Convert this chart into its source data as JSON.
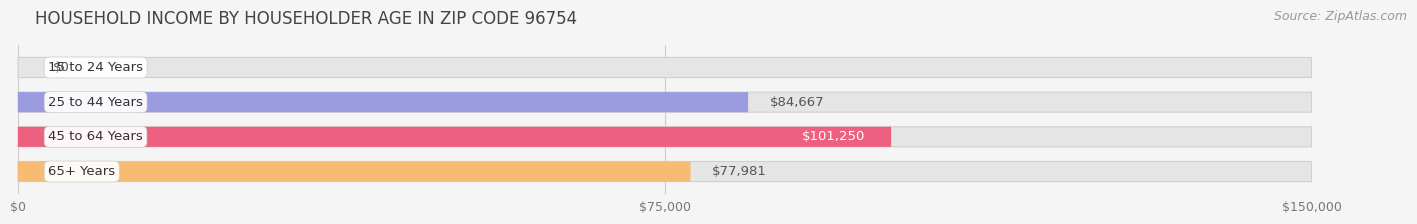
{
  "title": "HOUSEHOLD INCOME BY HOUSEHOLDER AGE IN ZIP CODE 96754",
  "source": "Source: ZipAtlas.com",
  "categories": [
    "15 to 24 Years",
    "25 to 44 Years",
    "45 to 64 Years",
    "65+ Years"
  ],
  "values": [
    0,
    84667,
    101250,
    77981
  ],
  "bar_colors": [
    "#7DD8D0",
    "#9B9BE0",
    "#EE6080",
    "#F7BC72"
  ],
  "value_labels": [
    "$0",
    "$84,667",
    "$101,250",
    "$77,981"
  ],
  "value_inside": [
    false,
    false,
    true,
    false
  ],
  "xlim": [
    0,
    150000
  ],
  "xticks": [
    0,
    75000,
    150000
  ],
  "xticklabels": [
    "$0",
    "$75,000",
    "$150,000"
  ],
  "background_color": "#f5f5f5",
  "bar_bg_color": "#e5e5e5",
  "title_fontsize": 12,
  "source_fontsize": 9,
  "label_fontsize": 9.5,
  "value_fontsize": 9.5,
  "tick_fontsize": 9
}
